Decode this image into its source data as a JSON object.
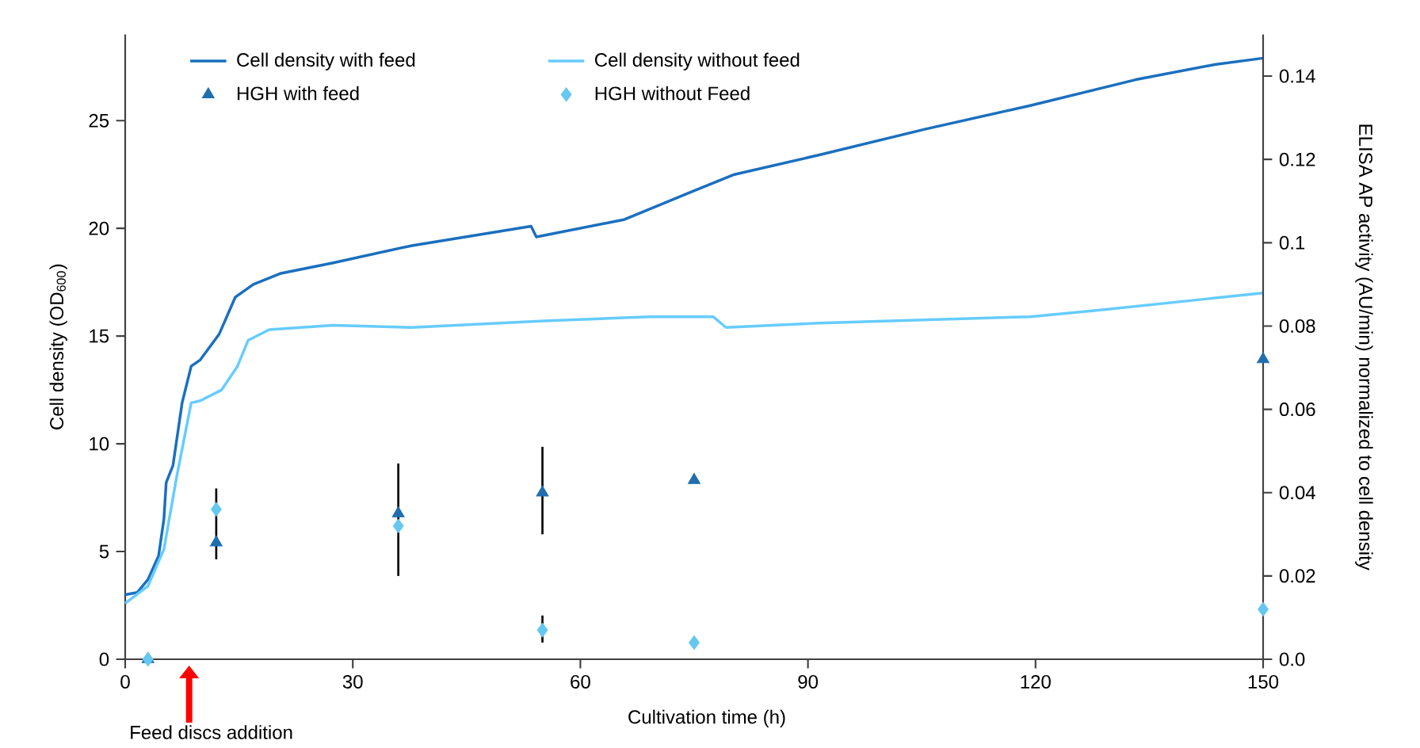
{
  "chart_data": {
    "type": "line",
    "xlabel": "Cultivation time (h)",
    "ylabel": "Cell density (OD$_{600}$)",
    "y2label": "ELISA AP activity (AU/min) normalized to cell density",
    "xlim": [
      0,
      150
    ],
    "xticks": [
      0,
      30,
      60,
      90,
      120,
      150
    ],
    "ylim": [
      0,
      29
    ],
    "yticks": [
      0,
      5,
      10,
      15,
      20,
      25
    ],
    "y2lim": [
      0,
      0.15
    ],
    "y2ticks": [
      {
        "value": 0,
        "label": "0.0"
      },
      0.02,
      0.04,
      0.06,
      0.08,
      0.1,
      0.12,
      0.14
    ],
    "legend": "top left",
    "annotations": [
      "Feed discs addition"
    ],
    "series": [
      {
        "name": "Cell density with feed",
        "color": "#1a6fbf",
        "x": [
          0,
          1.6,
          3.0,
          4.4,
          5.1,
          5.4,
          6.3,
          7.5,
          8.7,
          9.9,
          12.4,
          14.5,
          16.9,
          20.4,
          27.4,
          37.8,
          53.5,
          54.2,
          65.7,
          74.7,
          80.3,
          91.4,
          105.4,
          119.3,
          133.2,
          143.6,
          150
        ],
        "values": [
          3.0,
          3.1,
          3.7,
          4.8,
          6.5,
          8.2,
          9.0,
          11.9,
          13.6,
          13.9,
          15.1,
          16.8,
          17.4,
          17.9,
          18.4,
          19.2,
          20.1,
          19.6,
          20.4,
          21.7,
          22.5,
          23.4,
          24.6,
          25.7,
          26.9,
          27.6,
          27.9
        ]
      },
      {
        "name": "Cell density without feed",
        "color": "#66ccff",
        "x": [
          0,
          3.0,
          5.1,
          6.8,
          8.7,
          9.9,
          12.7,
          14.8,
          16.2,
          19.0,
          27.4,
          37.8,
          55.2,
          69.1,
          77.5,
          79.2,
          91.4,
          119.3,
          128.3,
          150
        ],
        "values": [
          2.6,
          3.4,
          5.1,
          8.5,
          11.9,
          12.0,
          12.5,
          13.6,
          14.8,
          15.3,
          15.5,
          15.4,
          15.7,
          15.9,
          15.9,
          15.4,
          15.6,
          15.9,
          16.2,
          17.0
        ]
      },
      {
        "name": "HGH with feed",
        "type": "scatter",
        "axis": "y2",
        "marker": "triangle",
        "color": "#1f6fb0",
        "x": [
          3,
          12,
          36,
          55,
          75,
          150
        ],
        "values": [
          0,
          0.028,
          0.035,
          0.04,
          0.043,
          0.072
        ],
        "errors": [
          null,
          [
            0.024,
            0.041
          ],
          [
            0.02,
            0.047
          ],
          [
            0.03,
            0.051
          ],
          null,
          null
        ]
      },
      {
        "name": "HGH without Feed",
        "type": "scatter",
        "axis": "y2",
        "marker": "diamond",
        "color": "#66c8f0",
        "x": [
          3,
          12,
          36,
          55,
          75,
          150
        ],
        "values": [
          0,
          0.036,
          0.032,
          0.007,
          0.004,
          0.012
        ],
        "errors": [
          null,
          null,
          null,
          [
            0.004,
            0.0105
          ],
          null,
          null
        ]
      }
    ]
  }
}
